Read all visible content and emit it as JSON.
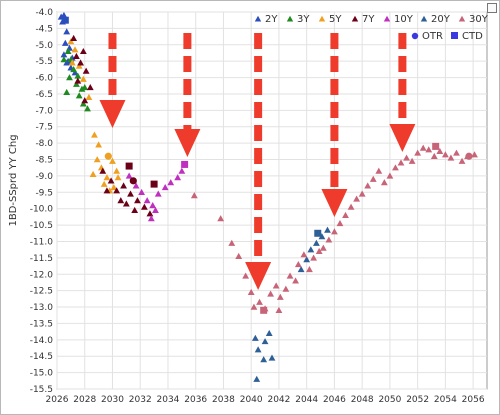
{
  "chart_data": {
    "type": "scatter",
    "title": "",
    "xlabel": "",
    "ylabel": "1BD-SSprd YY Chg",
    "xlim": [
      2026,
      2057
    ],
    "ylim": [
      -15.5,
      -4.0
    ],
    "xticks": [
      "2026",
      "2028",
      "2030",
      "2032",
      "2034",
      "2036",
      "2038",
      "2040",
      "2042",
      "2044",
      "2046",
      "2048",
      "2050",
      "2052",
      "2054",
      "2056"
    ],
    "yticks": [
      "-4.0",
      "-4.5",
      "-5.0",
      "-5.5",
      "-6.0",
      "-6.5",
      "-7.0",
      "-7.5",
      "-8.0",
      "-8.5",
      "-9.0",
      "-9.5",
      "-10.0",
      "-10.5",
      "-11.0",
      "-11.5",
      "-12.0",
      "-12.5",
      "-13.0",
      "-13.5",
      "-14.0",
      "-14.5",
      "-15.0",
      "-15.5"
    ],
    "grid": true,
    "legend_position": "top-right",
    "series": [
      {
        "name": "2Y",
        "color": "#2a4fbd",
        "marker": "triangle",
        "points": [
          [
            2026.3,
            -4.15
          ],
          [
            2026.5,
            -4.1
          ],
          [
            2026.4,
            -4.3
          ],
          [
            2026.7,
            -4.6
          ],
          [
            2026.6,
            -4.95
          ],
          [
            2026.9,
            -5.1
          ],
          [
            2026.5,
            -5.3
          ],
          [
            2026.8,
            -5.5
          ],
          [
            2027.1,
            -5.4
          ],
          [
            2027.0,
            -5.7
          ],
          [
            2027.3,
            -5.85
          ],
          [
            2026.7,
            -5.55
          ]
        ]
      },
      {
        "name": "3Y",
        "color": "#1f8a1f",
        "marker": "triangle",
        "points": [
          [
            2026.5,
            -5.45
          ],
          [
            2026.8,
            -5.2
          ],
          [
            2027.0,
            -5.45
          ],
          [
            2027.2,
            -5.75
          ],
          [
            2027.5,
            -5.95
          ],
          [
            2027.4,
            -6.2
          ],
          [
            2027.8,
            -6.35
          ],
          [
            2026.9,
            -6.0
          ],
          [
            2027.6,
            -6.55
          ],
          [
            2028.0,
            -6.3
          ],
          [
            2026.7,
            -6.45
          ],
          [
            2027.9,
            -6.8
          ],
          [
            2028.2,
            -6.95
          ]
        ]
      },
      {
        "name": "5Y",
        "color": "#f0a020",
        "marker": "triangle",
        "points": [
          [
            2027.0,
            -4.9
          ],
          [
            2027.3,
            -5.15
          ],
          [
            2027.1,
            -5.55
          ],
          [
            2027.6,
            -5.65
          ],
          [
            2027.9,
            -6.05
          ],
          [
            2028.3,
            -6.6
          ],
          [
            2028.7,
            -7.75
          ],
          [
            2029.0,
            -8.05
          ],
          [
            2028.9,
            -8.5
          ],
          [
            2029.2,
            -8.75
          ],
          [
            2029.6,
            -9.05
          ],
          [
            2030.0,
            -8.55
          ],
          [
            2030.3,
            -8.85
          ],
          [
            2029.4,
            -9.25
          ],
          [
            2028.6,
            -8.95
          ],
          [
            2029.8,
            -9.45
          ],
          [
            2030.4,
            -9.05
          ],
          [
            2030.1,
            -9.35
          ]
        ]
      },
      {
        "name": "7Y",
        "color": "#6b0018",
        "marker": "triangle",
        "points": [
          [
            2027.2,
            -4.8
          ],
          [
            2027.4,
            -5.35
          ],
          [
            2027.9,
            -5.2
          ],
          [
            2027.7,
            -5.55
          ],
          [
            2028.1,
            -5.8
          ],
          [
            2027.5,
            -6.1
          ],
          [
            2028.4,
            -6.3
          ],
          [
            2028.0,
            -6.7
          ],
          [
            2029.3,
            -8.85
          ],
          [
            2029.9,
            -9.15
          ],
          [
            2030.3,
            -9.45
          ],
          [
            2030.8,
            -9.3
          ],
          [
            2031.3,
            -9.55
          ],
          [
            2031.8,
            -9.75
          ],
          [
            2032.3,
            -9.95
          ],
          [
            2032.7,
            -10.15
          ],
          [
            2030.6,
            -9.75
          ],
          [
            2029.6,
            -9.45
          ],
          [
            2031.0,
            -9.85
          ],
          [
            2031.6,
            -10.05
          ]
        ]
      },
      {
        "name": "10Y",
        "color": "#c030c0",
        "marker": "triangle",
        "points": [
          [
            2031.2,
            -9.0
          ],
          [
            2031.7,
            -9.3
          ],
          [
            2032.1,
            -9.5
          ],
          [
            2032.5,
            -9.75
          ],
          [
            2032.9,
            -9.9
          ],
          [
            2033.3,
            -9.55
          ],
          [
            2033.8,
            -9.35
          ],
          [
            2034.2,
            -9.2
          ],
          [
            2034.7,
            -9.05
          ],
          [
            2035.0,
            -8.85
          ],
          [
            2032.8,
            -10.3
          ],
          [
            2033.1,
            -10.05
          ]
        ]
      },
      {
        "name": "20Y",
        "color": "#2e5f96",
        "marker": "triangle",
        "points": [
          [
            2040.3,
            -13.95
          ],
          [
            2040.5,
            -14.3
          ],
          [
            2041.0,
            -14.05
          ],
          [
            2041.3,
            -13.8
          ],
          [
            2040.9,
            -14.6
          ],
          [
            2041.5,
            -14.55
          ],
          [
            2040.4,
            -15.2
          ],
          [
            2043.6,
            -11.85
          ],
          [
            2044.0,
            -11.55
          ],
          [
            2044.3,
            -11.25
          ],
          [
            2044.7,
            -11.05
          ],
          [
            2045.1,
            -10.85
          ],
          [
            2045.5,
            -10.65
          ]
        ]
      },
      {
        "name": "30Y",
        "color": "#c86478",
        "marker": "triangle",
        "points": [
          [
            2035.9,
            -9.6
          ],
          [
            2037.8,
            -10.3
          ],
          [
            2038.6,
            -11.05
          ],
          [
            2039.1,
            -11.45
          ],
          [
            2039.6,
            -12.05
          ],
          [
            2040.0,
            -12.55
          ],
          [
            2040.2,
            -13.0
          ],
          [
            2040.6,
            -12.85
          ],
          [
            2041.0,
            -13.05
          ],
          [
            2041.4,
            -12.6
          ],
          [
            2041.8,
            -12.35
          ],
          [
            2042.1,
            -12.7
          ],
          [
            2042.5,
            -12.45
          ],
          [
            2042.8,
            -12.05
          ],
          [
            2043.2,
            -12.2
          ],
          [
            2043.4,
            -11.7
          ],
          [
            2043.8,
            -11.4
          ],
          [
            2044.2,
            -11.85
          ],
          [
            2044.5,
            -11.5
          ],
          [
            2045.2,
            -11.2
          ],
          [
            2045.6,
            -10.95
          ],
          [
            2046.0,
            -10.7
          ],
          [
            2046.4,
            -10.45
          ],
          [
            2046.8,
            -10.2
          ],
          [
            2047.2,
            -9.95
          ],
          [
            2047.6,
            -9.7
          ],
          [
            2048.0,
            -9.55
          ],
          [
            2048.4,
            -9.3
          ],
          [
            2048.8,
            -9.1
          ],
          [
            2049.2,
            -8.85
          ],
          [
            2049.6,
            -9.2
          ],
          [
            2050.0,
            -9.0
          ],
          [
            2050.4,
            -8.75
          ],
          [
            2050.8,
            -8.6
          ],
          [
            2051.2,
            -8.45
          ],
          [
            2051.6,
            -8.55
          ],
          [
            2052.0,
            -8.3
          ],
          [
            2052.4,
            -8.15
          ],
          [
            2052.8,
            -8.2
          ],
          [
            2053.2,
            -8.4
          ],
          [
            2053.6,
            -8.25
          ],
          [
            2054.0,
            -8.35
          ],
          [
            2054.4,
            -8.45
          ],
          [
            2054.8,
            -8.3
          ],
          [
            2055.2,
            -8.55
          ],
          [
            2055.6,
            -8.4
          ],
          [
            2056.1,
            -8.35
          ],
          [
            2042.0,
            -13.1
          ],
          [
            2044.9,
            -11.3
          ]
        ]
      }
    ],
    "ctd": [
      {
        "series": "2Y",
        "x": 2026.6,
        "y": -4.25
      },
      {
        "series": "7Y",
        "x": 2031.2,
        "y": -8.7
      },
      {
        "series": "7Y",
        "x": 2033.0,
        "y": -9.25
      },
      {
        "series": "10Y",
        "x": 2035.2,
        "y": -8.65
      },
      {
        "series": "30Y",
        "x": 2040.9,
        "y": -13.1
      },
      {
        "series": "20Y",
        "x": 2044.8,
        "y": -10.75
      },
      {
        "series": "30Y",
        "x": 2053.3,
        "y": -8.1
      }
    ],
    "otr": [
      {
        "series": "5Y",
        "x": 2029.7,
        "y": -8.4
      },
      {
        "series": "7Y",
        "x": 2031.5,
        "y": -9.15
      },
      {
        "series": "30Y",
        "x": 2055.7,
        "y": -8.4
      }
    ],
    "arrows_x": [
      2030.0,
      2035.4,
      2040.5,
      2046.0,
      2050.9
    ],
    "arrow_color": "#ee3b2b",
    "legend": {
      "series_entries": [
        "2Y",
        "3Y",
        "5Y",
        "7Y",
        "10Y",
        "20Y",
        "30Y"
      ],
      "otr_label": "OTR",
      "ctd_label": "CTD",
      "otr_color": "#3a3ae0",
      "ctd_color": "#3a3ae0"
    }
  }
}
